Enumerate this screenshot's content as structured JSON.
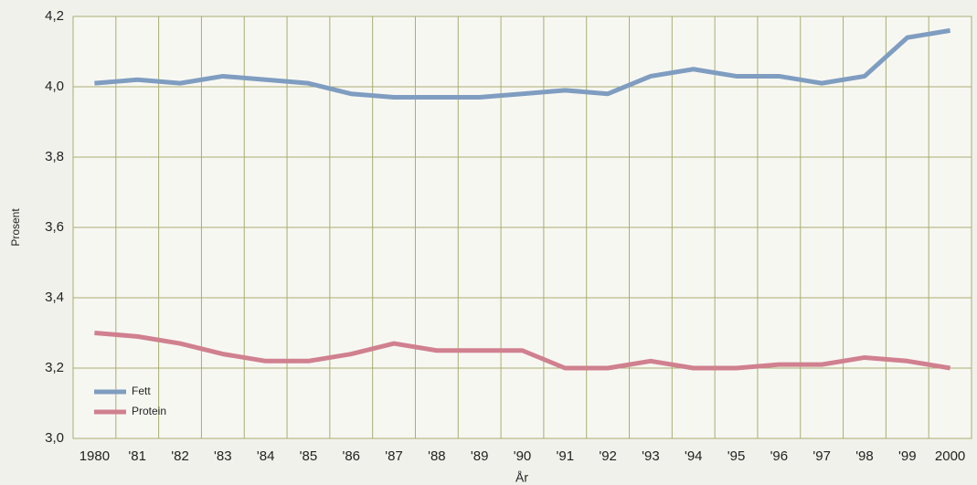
{
  "chart_data": {
    "type": "line",
    "x_label": "År",
    "y_label": "Prosent",
    "categories": [
      "1980",
      "'81",
      "'82",
      "'83",
      "'84",
      "'85",
      "'86",
      "'87",
      "'88",
      "'89",
      "'90",
      "'91",
      "'92",
      "'93",
      "'94",
      "'95",
      "'96",
      "'97",
      "'98",
      "'99",
      "2000"
    ],
    "series": [
      {
        "name": "Fett",
        "color": "#7f9dc0",
        "values": [
          4.01,
          4.02,
          4.01,
          4.03,
          4.02,
          4.01,
          3.98,
          3.97,
          3.97,
          3.97,
          3.98,
          3.99,
          3.98,
          4.03,
          4.05,
          4.03,
          4.03,
          4.01,
          4.03,
          4.14,
          4.16
        ]
      },
      {
        "name": "Protein",
        "color": "#d0808f",
        "values": [
          3.3,
          3.29,
          3.27,
          3.24,
          3.22,
          3.22,
          3.24,
          3.27,
          3.25,
          3.25,
          3.25,
          3.2,
          3.2,
          3.22,
          3.2,
          3.2,
          3.21,
          3.21,
          3.23,
          3.22,
          3.2
        ]
      }
    ],
    "ylim": [
      3.0,
      4.2
    ],
    "yticks": [
      {
        "value": 3.0,
        "label": "3,0"
      },
      {
        "value": 3.2,
        "label": "3,2"
      },
      {
        "value": 3.4,
        "label": "3,4"
      },
      {
        "value": 3.6,
        "label": "3,6"
      },
      {
        "value": 3.8,
        "label": "3,8"
      },
      {
        "value": 4.0,
        "label": "4,0"
      },
      {
        "value": 4.2,
        "label": "4,2"
      }
    ],
    "grid": true,
    "legend": "lower left"
  }
}
